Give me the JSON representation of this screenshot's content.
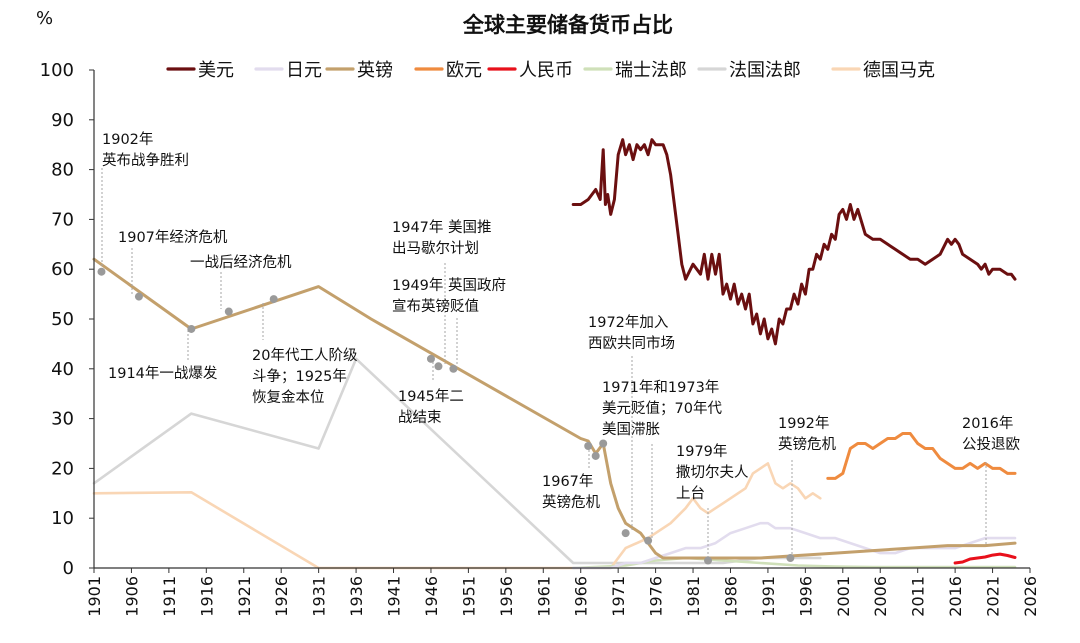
{
  "chart_data": {
    "type": "line",
    "title": "全球主要储备货币占比",
    "ylabel": "%",
    "xlabel": "",
    "xlim": [
      1901,
      2026
    ],
    "ylim": [
      0,
      100
    ],
    "yticks": [
      0,
      10,
      20,
      30,
      40,
      50,
      60,
      70,
      80,
      90,
      100
    ],
    "xticks": [
      1901,
      1906,
      1911,
      1916,
      1921,
      1926,
      1931,
      1936,
      1941,
      1946,
      1951,
      1956,
      1961,
      1966,
      1971,
      1976,
      1981,
      1986,
      1991,
      1996,
      2001,
      2006,
      2011,
      2016,
      2021,
      2026
    ],
    "grid": false,
    "legend_position": "top",
    "series": [
      {
        "name": "美元",
        "color": "#6b0f10",
        "x": [
          1965,
          1966,
          1967,
          1968,
          1968.6,
          1969,
          1969.3,
          1969.6,
          1970,
          1970.5,
          1971,
          1971.6,
          1972,
          1972.5,
          1973,
          1973.5,
          1974,
          1974.5,
          1975,
          1975.5,
          1976,
          1977,
          1977.5,
          1978,
          1979,
          1979.5,
          1980,
          1981,
          1982,
          1982.5,
          1983,
          1983.5,
          1984,
          1984.5,
          1985,
          1985.5,
          1986,
          1986.5,
          1987,
          1987.5,
          1988,
          1988.5,
          1989,
          1989.5,
          1990,
          1990.5,
          1991,
          1991.5,
          1992,
          1992.5,
          1993,
          1993.5,
          1994,
          1994.5,
          1995,
          1995.5,
          1996,
          1996.5,
          1997,
          1997.5,
          1998,
          1998.5,
          1999,
          1999.5,
          2000,
          2000.5,
          2001,
          2001.5,
          2002,
          2002.5,
          2003,
          2004,
          2005,
          2006,
          2007,
          2008,
          2009,
          2010,
          2011,
          2012,
          2013,
          2014,
          2015,
          2015.5,
          2016,
          2016.5,
          2017,
          2018,
          2019,
          2019.5,
          2020,
          2020.5,
          2021,
          2022,
          2023,
          2023.5,
          2024
        ],
        "y": [
          73,
          73,
          74,
          76,
          74,
          84,
          73,
          75,
          71,
          74,
          83,
          86,
          83,
          85,
          82,
          85,
          84,
          85,
          83,
          86,
          85,
          85,
          83,
          79,
          67,
          61,
          58,
          61,
          59,
          63,
          58,
          63,
          59,
          63,
          55,
          57,
          54,
          57,
          53,
          55,
          52,
          55,
          49,
          51,
          47,
          50,
          46,
          48,
          45,
          50,
          49,
          52,
          52,
          55,
          53,
          57,
          55,
          60,
          60,
          63,
          62,
          65,
          64,
          67,
          66,
          71,
          72,
          70,
          73,
          70,
          72,
          67,
          66,
          66,
          65,
          64,
          63,
          62,
          62,
          61,
          62,
          63,
          66,
          65,
          66,
          65,
          63,
          62,
          61,
          60,
          61,
          59,
          60,
          60,
          59,
          59,
          58
        ]
      },
      {
        "name": "日元",
        "color": "#e2dcee",
        "x": [
          1965,
          1970,
          1972,
          1974,
          1976,
          1978,
          1980,
          1982,
          1984,
          1986,
          1988,
          1990,
          1991,
          1992,
          1994,
          1996,
          1998,
          2000,
          2002,
          2004,
          2006,
          2008,
          2010,
          2012,
          2014,
          2016,
          2018,
          2020,
          2022,
          2024
        ],
        "y": [
          0,
          0,
          1,
          1,
          2,
          3,
          4,
          4,
          5,
          7,
          8,
          9,
          9,
          8,
          8,
          7,
          6,
          6,
          5,
          4,
          3,
          3,
          4,
          4,
          4,
          4,
          5,
          6,
          6,
          6
        ]
      },
      {
        "name": "英镑",
        "color": "#c3a06c",
        "x": [
          1901,
          1914,
          1931,
          1938,
          1966,
          1967,
          1968,
          1969,
          1970,
          1971,
          1972,
          1973,
          1974,
          1975,
          1976,
          1977,
          1978,
          1980,
          1985,
          1990,
          1995,
          2000,
          2005,
          2010,
          2015,
          2020,
          2024
        ],
        "y": [
          62,
          48,
          56.5,
          50,
          26,
          25.5,
          23,
          25,
          17,
          12,
          9,
          8,
          7,
          5,
          3,
          2,
          2,
          2,
          2,
          2,
          2.5,
          3,
          3.5,
          4,
          4.5,
          4.5,
          5
        ]
      },
      {
        "name": "欧元",
        "color": "#ef8b3f",
        "x": [
          1999,
          2000,
          2001,
          2002,
          2003,
          2004,
          2005,
          2006,
          2007,
          2008,
          2009,
          2010,
          2011,
          2012,
          2013,
          2014,
          2015,
          2016,
          2017,
          2018,
          2019,
          2020,
          2021,
          2022,
          2023,
          2024
        ],
        "y": [
          18,
          18,
          19,
          24,
          25,
          25,
          24,
          25,
          26,
          26,
          27,
          27,
          25,
          24,
          24,
          22,
          21,
          20,
          20,
          21,
          20,
          21,
          20,
          20,
          19,
          19
        ]
      },
      {
        "name": "人民币",
        "color": "#e8101b",
        "x": [
          2016,
          2017,
          2018,
          2019,
          2020,
          2021,
          2022,
          2023,
          2024
        ],
        "y": [
          1,
          1.2,
          1.8,
          2,
          2.2,
          2.6,
          2.8,
          2.5,
          2.1
        ]
      },
      {
        "name": "瑞士法郎",
        "color": "#cfe0b9",
        "x": [
          1965,
          1972,
          1976,
          1980,
          1985,
          1990,
          1995,
          2000,
          2005,
          2010,
          2015,
          2020,
          2024
        ],
        "y": [
          0,
          0.5,
          1.5,
          2,
          1.5,
          1,
          0.5,
          0.3,
          0.2,
          0.2,
          0.2,
          0.2,
          0.2
        ]
      },
      {
        "name": "法国法郎",
        "color": "#d6d6d6",
        "x": [
          1901,
          1914,
          1931,
          1936,
          1965,
          1970,
          1975,
          1980,
          1985,
          1990,
          1995,
          1998
        ],
        "y": [
          17,
          31,
          24,
          42,
          1,
          1,
          1,
          1,
          1,
          2,
          2,
          2
        ]
      },
      {
        "name": "德国马克",
        "color": "#f9d6b5",
        "x": [
          1901,
          1914,
          1931,
          1965,
          1970,
          1972,
          1975,
          1978,
          1980,
          1981,
          1982,
          1983,
          1984,
          1985,
          1986,
          1987,
          1988,
          1989,
          1990,
          1991,
          1992,
          1993,
          1994,
          1995,
          1996,
          1997,
          1998
        ],
        "y": [
          15,
          15.2,
          0,
          0,
          0,
          4,
          6,
          9,
          12,
          14,
          12,
          11,
          12,
          13,
          14,
          15,
          16,
          19,
          20,
          21,
          17,
          16,
          17,
          16,
          14,
          15,
          14
        ]
      }
    ],
    "markers": [
      {
        "x": 1902,
        "y": 59.5
      },
      {
        "x": 1907,
        "y": 54.5
      },
      {
        "x": 1914,
        "y": 48
      },
      {
        "x": 1919,
        "y": 51.5
      },
      {
        "x": 1925,
        "y": 54
      },
      {
        "x": 1946,
        "y": 42
      },
      {
        "x": 1947,
        "y": 40.5
      },
      {
        "x": 1949,
        "y": 40
      },
      {
        "x": 1967,
        "y": 24.5
      },
      {
        "x": 1968,
        "y": 22.5
      },
      {
        "x": 1969,
        "y": 25
      },
      {
        "x": 1972,
        "y": 7
      },
      {
        "x": 1975,
        "y": 5.5
      },
      {
        "x": 1983,
        "y": 1.5
      },
      {
        "x": 1994,
        "y": 2
      }
    ],
    "annotations": [
      {
        "lines": [
          "1902年",
          "英布战争胜利"
        ],
        "x": 1902,
        "y": 59.5
      },
      {
        "lines": [
          "1907年经济危机"
        ],
        "x": 1907,
        "y": 54.5
      },
      {
        "lines": [
          "一战后经济危机"
        ],
        "x": 1919,
        "y": 51.5
      },
      {
        "lines": [
          "1914年一战爆发"
        ],
        "x": 1914,
        "y": 48
      },
      {
        "lines": [
          "20年代工人阶级",
          "斗争；1925年",
          "恢复金本位"
        ],
        "x": 1925,
        "y": 54
      },
      {
        "lines": [
          "1947年 美国推",
          "出马歇尔计划"
        ],
        "x": 1947,
        "y": 40.5
      },
      {
        "lines": [
          "1949年 英国政府",
          "宣布英镑贬值"
        ],
        "x": 1949,
        "y": 40
      },
      {
        "lines": [
          "1945年二",
          "战结束"
        ],
        "x": 1946,
        "y": 42
      },
      {
        "lines": [
          "1972年加入",
          "西欧共同市场"
        ],
        "x": 1972,
        "y": 7
      },
      {
        "lines": [
          "1971年和1973年",
          "美元贬值；70年代",
          "美国滞胀"
        ],
        "x": 1975,
        "y": 5.5
      },
      {
        "lines": [
          "1967年",
          "英镑危机"
        ],
        "x": 1967,
        "y": 24.5
      },
      {
        "lines": [
          "1979年",
          "撒切尔夫人",
          "上台"
        ],
        "x": 1983,
        "y": 1.5
      },
      {
        "lines": [
          "1992年",
          "英镑危机"
        ],
        "x": 1994,
        "y": 2
      },
      {
        "lines": [
          "2016年",
          "公投退欧"
        ],
        "x": 2021,
        "y": 4.5
      }
    ]
  }
}
